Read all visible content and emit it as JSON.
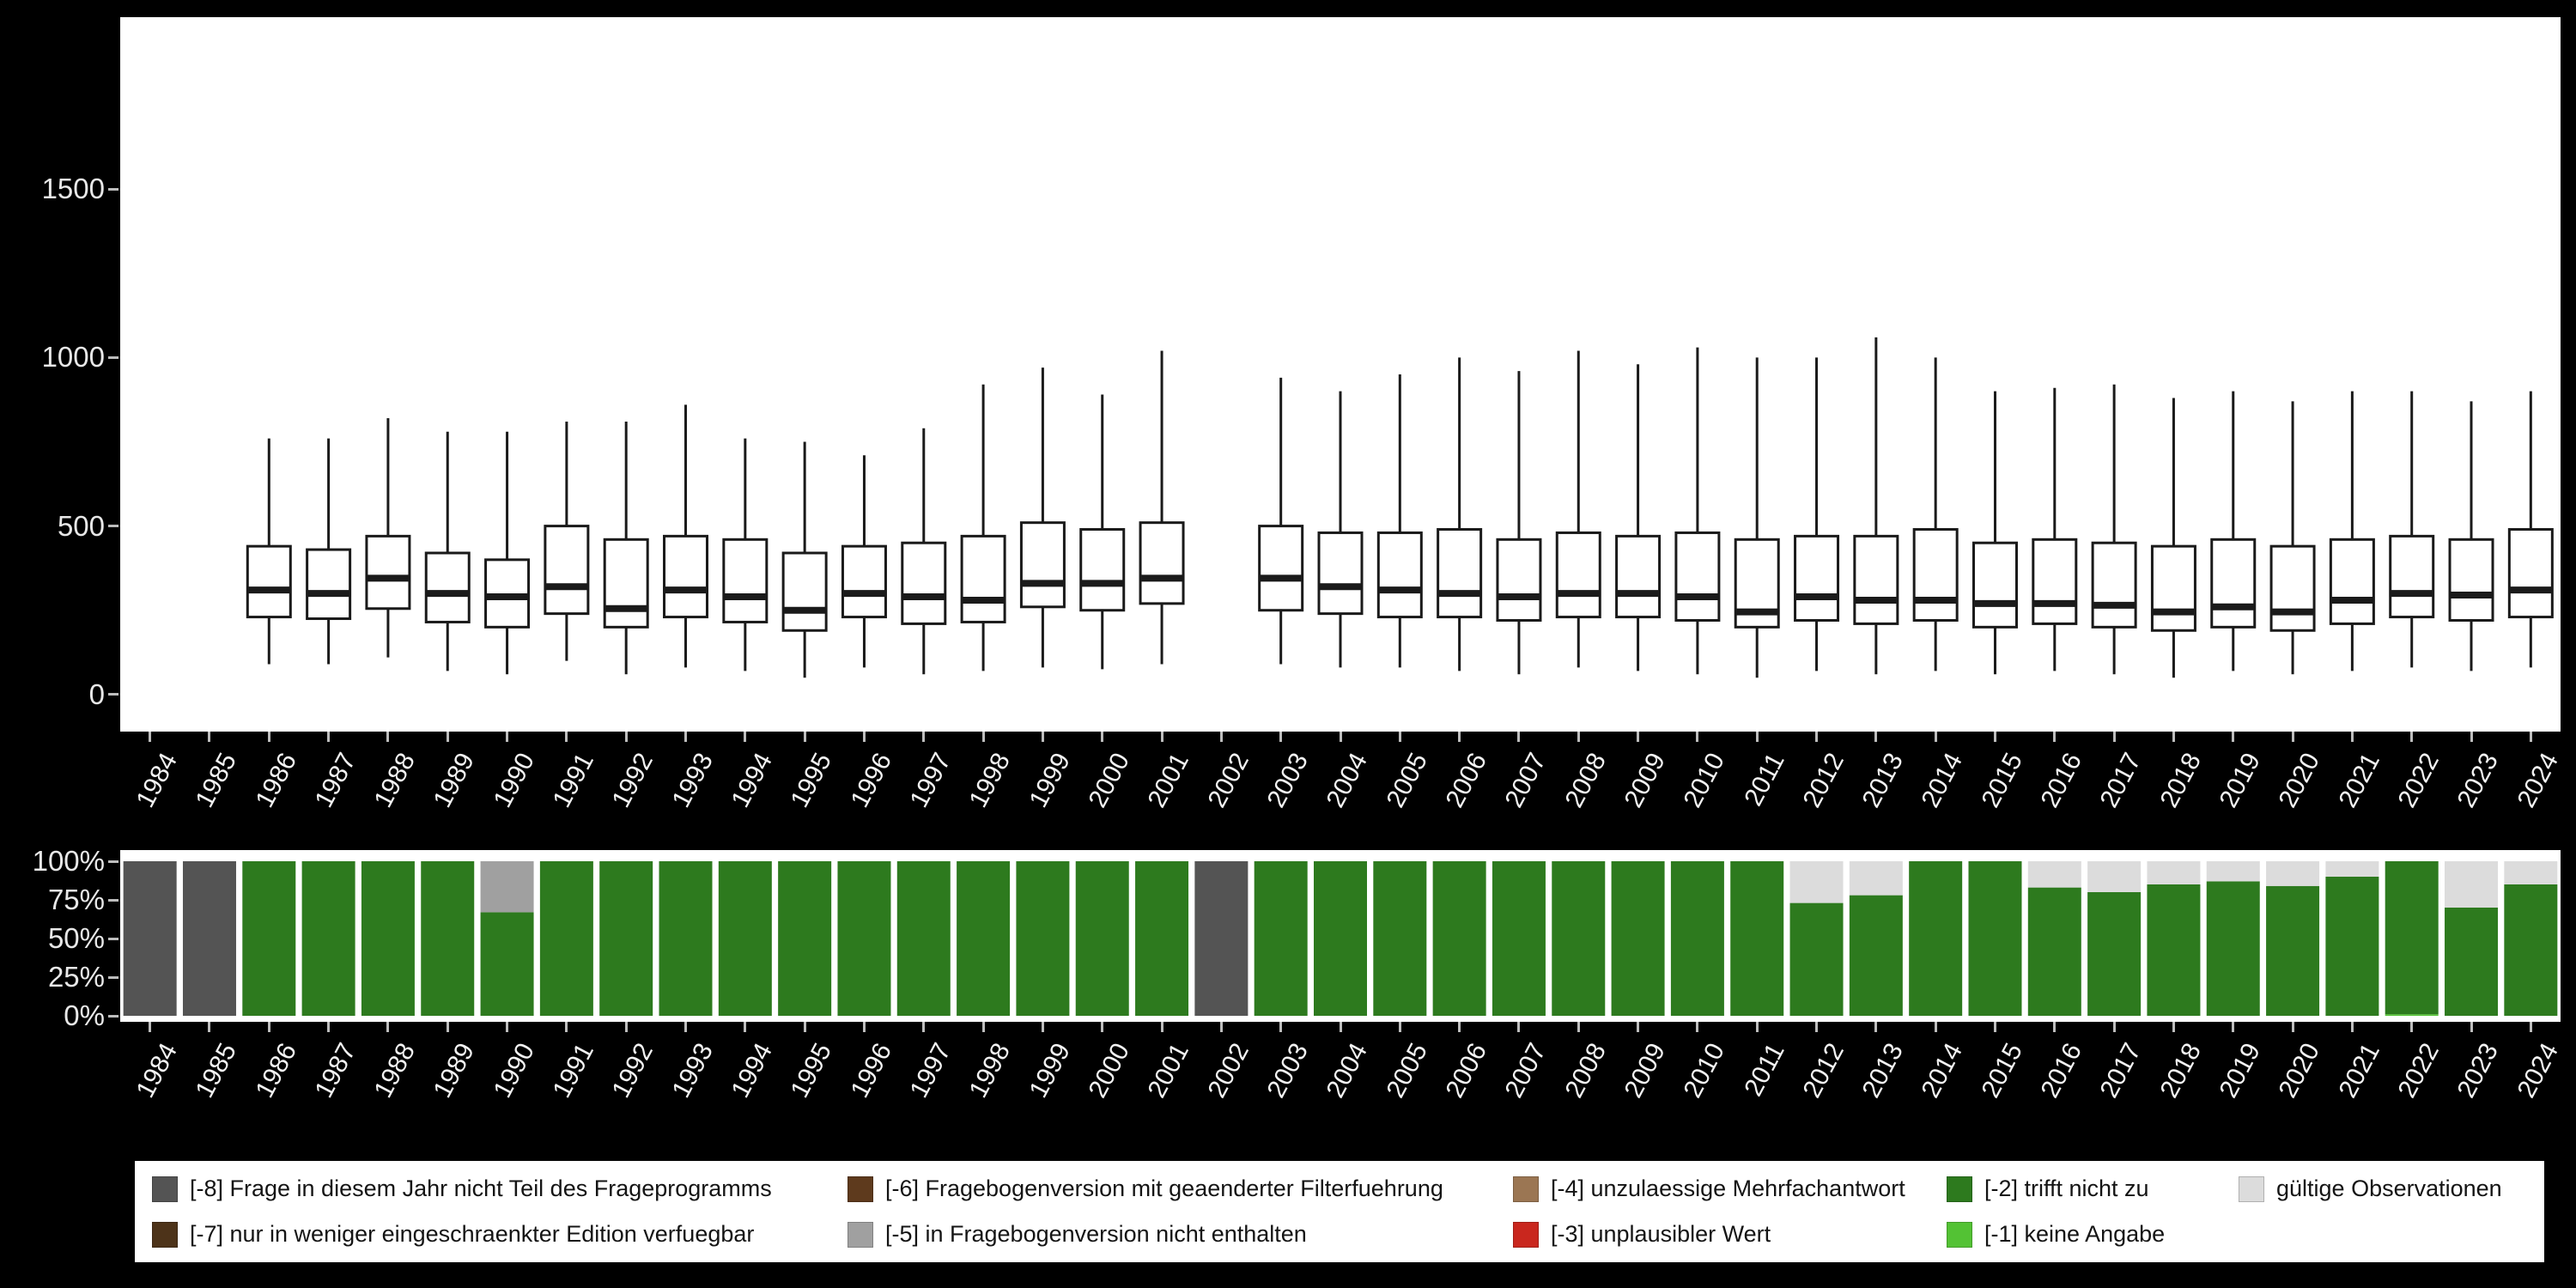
{
  "figure": {
    "background": "#000000",
    "panel_background": "#ffffff"
  },
  "chart_data": [
    {
      "type": "boxplot",
      "title": "",
      "xlabel": "",
      "ylabel": "",
      "ylim": [
        -110,
        2010
      ],
      "grid": false,
      "y_ticks": [
        {
          "label": "0",
          "value": 0
        },
        {
          "label": "500",
          "value": 500
        },
        {
          "label": "1000",
          "value": 1000
        },
        {
          "label": "1500",
          "value": 1500
        }
      ],
      "categories": [
        "1984",
        "1985",
        "1986",
        "1987",
        "1988",
        "1989",
        "1990",
        "1991",
        "1992",
        "1993",
        "1994",
        "1995",
        "1996",
        "1997",
        "1998",
        "1999",
        "2000",
        "2001",
        "2002",
        "2003",
        "2004",
        "2005",
        "2006",
        "2007",
        "2008",
        "2009",
        "2010",
        "2011",
        "2012",
        "2013",
        "2014",
        "2015",
        "2016",
        "2017",
        "2018",
        "2019",
        "2020",
        "2021",
        "2022",
        "2023",
        "2024"
      ],
      "boxes": [
        null,
        null,
        {
          "low": 90,
          "q1": 230,
          "median": 310,
          "q3": 440,
          "high": 760
        },
        {
          "low": 90,
          "q1": 225,
          "median": 300,
          "q3": 430,
          "high": 760
        },
        {
          "low": 110,
          "q1": 255,
          "median": 345,
          "q3": 470,
          "high": 820
        },
        {
          "low": 70,
          "q1": 215,
          "median": 300,
          "q3": 420,
          "high": 780
        },
        {
          "low": 60,
          "q1": 200,
          "median": 290,
          "q3": 400,
          "high": 780
        },
        {
          "low": 100,
          "q1": 240,
          "median": 320,
          "q3": 500,
          "high": 810
        },
        {
          "low": 60,
          "q1": 200,
          "median": 255,
          "q3": 460,
          "high": 810
        },
        {
          "low": 80,
          "q1": 230,
          "median": 310,
          "q3": 470,
          "high": 860
        },
        {
          "low": 70,
          "q1": 215,
          "median": 290,
          "q3": 460,
          "high": 760
        },
        {
          "low": 50,
          "q1": 190,
          "median": 250,
          "q3": 420,
          "high": 750
        },
        {
          "low": 80,
          "q1": 230,
          "median": 300,
          "q3": 440,
          "high": 710
        },
        {
          "low": 60,
          "q1": 210,
          "median": 290,
          "q3": 450,
          "high": 790
        },
        {
          "low": 70,
          "q1": 215,
          "median": 280,
          "q3": 470,
          "high": 920
        },
        {
          "low": 80,
          "q1": 260,
          "median": 330,
          "q3": 510,
          "high": 970
        },
        {
          "low": 75,
          "q1": 250,
          "median": 330,
          "q3": 490,
          "high": 890
        },
        {
          "low": 90,
          "q1": 270,
          "median": 345,
          "q3": 510,
          "high": 1020
        },
        null,
        {
          "low": 90,
          "q1": 250,
          "median": 345,
          "q3": 500,
          "high": 940
        },
        {
          "low": 80,
          "q1": 240,
          "median": 320,
          "q3": 480,
          "high": 900
        },
        {
          "low": 80,
          "q1": 230,
          "median": 310,
          "q3": 480,
          "high": 950
        },
        {
          "low": 70,
          "q1": 230,
          "median": 300,
          "q3": 490,
          "high": 1000
        },
        {
          "low": 60,
          "q1": 220,
          "median": 290,
          "q3": 460,
          "high": 960
        },
        {
          "low": 80,
          "q1": 230,
          "median": 300,
          "q3": 480,
          "high": 1020
        },
        {
          "low": 70,
          "q1": 230,
          "median": 300,
          "q3": 470,
          "high": 980
        },
        {
          "low": 60,
          "q1": 220,
          "median": 290,
          "q3": 480,
          "high": 1030
        },
        {
          "low": 50,
          "q1": 200,
          "median": 245,
          "q3": 460,
          "high": 1000
        },
        {
          "low": 70,
          "q1": 220,
          "median": 290,
          "q3": 470,
          "high": 1000
        },
        {
          "low": 60,
          "q1": 210,
          "median": 280,
          "q3": 470,
          "high": 1060
        },
        {
          "low": 70,
          "q1": 220,
          "median": 280,
          "q3": 490,
          "high": 1000
        },
        {
          "low": 60,
          "q1": 200,
          "median": 270,
          "q3": 450,
          "high": 900
        },
        {
          "low": 70,
          "q1": 210,
          "median": 270,
          "q3": 460,
          "high": 910
        },
        {
          "low": 60,
          "q1": 200,
          "median": 265,
          "q3": 450,
          "high": 920
        },
        {
          "low": 50,
          "q1": 190,
          "median": 245,
          "q3": 440,
          "high": 880
        },
        {
          "low": 70,
          "q1": 200,
          "median": 260,
          "q3": 460,
          "high": 900
        },
        {
          "low": 60,
          "q1": 190,
          "median": 245,
          "q3": 440,
          "high": 870
        },
        {
          "low": 70,
          "q1": 210,
          "median": 280,
          "q3": 460,
          "high": 900
        },
        {
          "low": 80,
          "q1": 230,
          "median": 300,
          "q3": 470,
          "high": 900
        },
        {
          "low": 70,
          "q1": 220,
          "median": 295,
          "q3": 460,
          "high": 870
        },
        {
          "low": 80,
          "q1": 230,
          "median": 310,
          "q3": 490,
          "high": 900
        }
      ]
    },
    {
      "type": "bar-stacked-percent",
      "title": "",
      "xlabel": "",
      "ylabel": "",
      "ylim": [
        0,
        100
      ],
      "y_ticks": [
        {
          "label": "0%",
          "value": 0
        },
        {
          "label": "25%",
          "value": 25
        },
        {
          "label": "50%",
          "value": 50
        },
        {
          "label": "75%",
          "value": 75
        },
        {
          "label": "100%",
          "value": 100
        }
      ],
      "categories": [
        "1984",
        "1985",
        "1986",
        "1987",
        "1988",
        "1989",
        "1990",
        "1991",
        "1992",
        "1993",
        "1994",
        "1995",
        "1996",
        "1997",
        "1998",
        "1999",
        "2000",
        "2001",
        "2002",
        "2003",
        "2004",
        "2005",
        "2006",
        "2007",
        "2008",
        "2009",
        "2010",
        "2011",
        "2012",
        "2013",
        "2014",
        "2015",
        "2016",
        "2017",
        "2018",
        "2019",
        "2020",
        "2021",
        "2022",
        "2023",
        "2024"
      ],
      "bars": [
        {
          "segments": [
            {
              "code": "-8",
              "pct": 100
            }
          ]
        },
        {
          "segments": [
            {
              "code": "-8",
              "pct": 100
            }
          ]
        },
        {
          "segments": [
            {
              "code": "-2",
              "pct": 100
            }
          ]
        },
        {
          "segments": [
            {
              "code": "-2",
              "pct": 100
            }
          ]
        },
        {
          "segments": [
            {
              "code": "-2",
              "pct": 100
            }
          ]
        },
        {
          "segments": [
            {
              "code": "-2",
              "pct": 100
            }
          ]
        },
        {
          "segments": [
            {
              "code": "-2",
              "pct": 67
            },
            {
              "code": "-5",
              "pct": 33
            }
          ]
        },
        {
          "segments": [
            {
              "code": "-2",
              "pct": 100
            }
          ]
        },
        {
          "segments": [
            {
              "code": "-2",
              "pct": 100
            }
          ]
        },
        {
          "segments": [
            {
              "code": "-2",
              "pct": 100
            }
          ]
        },
        {
          "segments": [
            {
              "code": "-2",
              "pct": 100
            }
          ]
        },
        {
          "segments": [
            {
              "code": "-2",
              "pct": 100
            }
          ]
        },
        {
          "segments": [
            {
              "code": "-2",
              "pct": 100
            }
          ]
        },
        {
          "segments": [
            {
              "code": "-2",
              "pct": 100
            }
          ]
        },
        {
          "segments": [
            {
              "code": "-2",
              "pct": 100
            }
          ]
        },
        {
          "segments": [
            {
              "code": "-2",
              "pct": 100
            }
          ]
        },
        {
          "segments": [
            {
              "code": "-2",
              "pct": 100
            }
          ]
        },
        {
          "segments": [
            {
              "code": "-2",
              "pct": 100
            }
          ]
        },
        {
          "segments": [
            {
              "code": "-8",
              "pct": 100
            }
          ]
        },
        {
          "segments": [
            {
              "code": "-2",
              "pct": 100
            }
          ]
        },
        {
          "segments": [
            {
              "code": "-2",
              "pct": 100
            }
          ]
        },
        {
          "segments": [
            {
              "code": "-2",
              "pct": 100
            }
          ]
        },
        {
          "segments": [
            {
              "code": "-2",
              "pct": 100
            }
          ]
        },
        {
          "segments": [
            {
              "code": "-2",
              "pct": 100
            }
          ]
        },
        {
          "segments": [
            {
              "code": "-2",
              "pct": 100
            }
          ]
        },
        {
          "segments": [
            {
              "code": "-2",
              "pct": 100
            }
          ]
        },
        {
          "segments": [
            {
              "code": "-2",
              "pct": 100
            }
          ]
        },
        {
          "segments": [
            {
              "code": "-2",
              "pct": 100
            }
          ]
        },
        {
          "segments": [
            {
              "code": "-2",
              "pct": 73
            },
            {
              "code": "valid",
              "pct": 27
            }
          ]
        },
        {
          "segments": [
            {
              "code": "-2",
              "pct": 78
            },
            {
              "code": "valid",
              "pct": 22
            }
          ]
        },
        {
          "segments": [
            {
              "code": "-2",
              "pct": 100
            }
          ]
        },
        {
          "segments": [
            {
              "code": "-2",
              "pct": 100
            }
          ]
        },
        {
          "segments": [
            {
              "code": "-2",
              "pct": 83
            },
            {
              "code": "valid",
              "pct": 17
            }
          ]
        },
        {
          "segments": [
            {
              "code": "-2",
              "pct": 80
            },
            {
              "code": "valid",
              "pct": 20
            }
          ]
        },
        {
          "segments": [
            {
              "code": "-2",
              "pct": 85
            },
            {
              "code": "valid",
              "pct": 15
            }
          ]
        },
        {
          "segments": [
            {
              "code": "-2",
              "pct": 87
            },
            {
              "code": "valid",
              "pct": 13
            }
          ]
        },
        {
          "segments": [
            {
              "code": "-2",
              "pct": 84
            },
            {
              "code": "valid",
              "pct": 16
            }
          ]
        },
        {
          "segments": [
            {
              "code": "-2",
              "pct": 90
            },
            {
              "code": "valid",
              "pct": 10
            }
          ]
        },
        {
          "segments": [
            {
              "code": "-1",
              "pct": 1
            },
            {
              "code": "-2",
              "pct": 99
            }
          ]
        },
        {
          "segments": [
            {
              "code": "-2",
              "pct": 70
            },
            {
              "code": "valid",
              "pct": 30
            }
          ]
        },
        {
          "segments": [
            {
              "code": "-2",
              "pct": 85
            },
            {
              "code": "valid",
              "pct": 15
            }
          ]
        }
      ]
    }
  ],
  "legend": {
    "items": [
      {
        "code": "-8",
        "label": "[-8] Frage in diesem Jahr nicht Teil des Frageprogramms",
        "color": "#545454"
      },
      {
        "code": "-7",
        "label": "[-7] nur in weniger eingeschraenkter Edition verfuegbar",
        "color": "#4d3319"
      },
      {
        "code": "-6",
        "label": "[-6] Fragebogenversion mit geaenderter Filterfuehrung",
        "color": "#5e3a1d"
      },
      {
        "code": "-5",
        "label": "[-5] in Fragebogenversion nicht enthalten",
        "color": "#a0a0a0"
      },
      {
        "code": "-4",
        "label": "[-4] unzulaessige Mehrfachantwort",
        "color": "#9b7653"
      },
      {
        "code": "-3",
        "label": "[-3] unplausibler Wert",
        "color": "#c9271e"
      },
      {
        "code": "-2",
        "label": "[-2] trifft nicht zu",
        "color": "#2d7a1e"
      },
      {
        "code": "-1",
        "label": "[-1] keine Angabe",
        "color": "#53c234"
      },
      {
        "code": "valid",
        "label": "gültige Observationen",
        "color": "#dcdcdc"
      }
    ]
  }
}
